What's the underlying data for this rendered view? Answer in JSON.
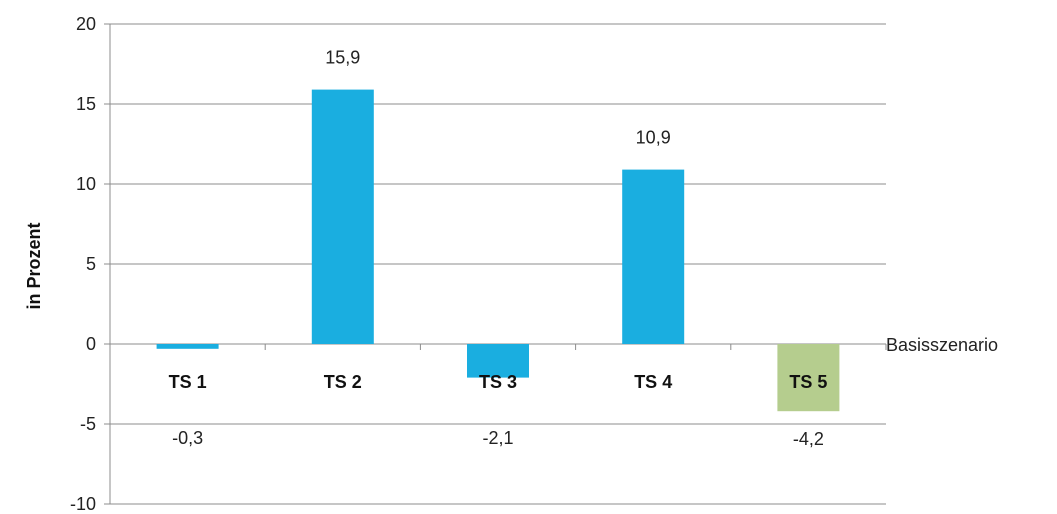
{
  "chart_data": {
    "type": "bar",
    "categories": [
      "TS 1",
      "TS 2",
      "TS 3",
      "TS 4",
      "TS 5"
    ],
    "values": [
      -0.3,
      15.9,
      -2.1,
      10.9,
      -4.2
    ],
    "value_labels": [
      "-0,3",
      "15,9",
      "-2,1",
      "10,9",
      "-4,2"
    ],
    "bar_colors": [
      "#1aaee0",
      "#1aaee0",
      "#1aaee0",
      "#1aaee0",
      "#b5cd8e"
    ],
    "ylabel": "in Prozent",
    "ylim": [
      -10,
      20
    ],
    "yticks": [
      20,
      15,
      10,
      5,
      0,
      -5,
      -10
    ],
    "ytick_labels": [
      "20",
      "15",
      "10",
      "5",
      "0",
      "-5",
      "-10"
    ],
    "baseline_label": "Basisszenario",
    "grid": true,
    "legend": "none"
  },
  "colors": {
    "grid": "#8c8c8c",
    "axis": "#8c8c8c"
  }
}
